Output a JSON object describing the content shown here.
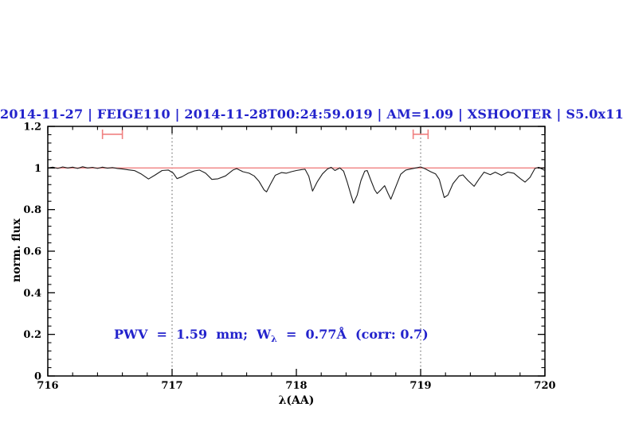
{
  "title": {
    "text": "2014-11-27 | FEIGE110 | 2014-11-28T00:24:59.019 | AM=1.09 | XSHOOTER | S5.0x11",
    "color": "#2323cc"
  },
  "annotation": {
    "part1": "PWV  =  1.59  mm;  W",
    "subscript": "λ",
    "part2": "  =  0.77Å  (corr: 0.7)",
    "color": "#2323cc"
  },
  "axes": {
    "x_label": "λ(AA)",
    "y_label": "norm. flux",
    "x_ticks": [
      "716",
      "717",
      "718",
      "719",
      "720"
    ],
    "y_ticks": [
      "0",
      "0.2",
      "0.4",
      "0.6",
      "0.8",
      "1",
      "1.2"
    ]
  },
  "colors": {
    "continuum_red": "#f08080",
    "marker_red": "#f08080",
    "spectrum_black": "#1b1b1b",
    "title_blue": "#2323cc"
  },
  "chart_data": {
    "type": "line",
    "title": "2014-11-27 | FEIGE110 | 2014-11-28T00:24:59.019 | AM=1.09 | XSHOOTER | S5.0x11",
    "xlabel": "λ(AA)",
    "ylabel": "norm. flux",
    "xlim": [
      716,
      720
    ],
    "ylim": [
      0,
      1.2
    ],
    "grid": false,
    "x_major_ticks": [
      716,
      717,
      718,
      719,
      720
    ],
    "x_minor_step": 0.2,
    "y_major_ticks": [
      0,
      0.2,
      0.4,
      0.6,
      0.8,
      1.0,
      1.2
    ],
    "y_minor_step": 0.04,
    "dotted_vlines_x": [
      717,
      719
    ],
    "continuum_line": {
      "y": 1.0,
      "color": "#f08080"
    },
    "window_markers": [
      {
        "x_min": 716.44,
        "x_max": 716.6,
        "y": 1.162,
        "cap_halfheight_flux": 0.023,
        "color": "#f08080"
      },
      {
        "x_min": 718.94,
        "x_max": 719.06,
        "y": 1.162,
        "cap_halfheight_flux": 0.023,
        "color": "#f08080"
      }
    ],
    "series": [
      {
        "name": "normalized spectrum",
        "color": "#1b1b1b",
        "points": [
          [
            716.0,
            1.0
          ],
          [
            716.04,
            1.004
          ],
          [
            716.08,
            0.998
          ],
          [
            716.12,
            1.005
          ],
          [
            716.16,
            1.0
          ],
          [
            716.2,
            1.004
          ],
          [
            716.24,
            0.998
          ],
          [
            716.28,
            1.006
          ],
          [
            716.32,
            1.0
          ],
          [
            716.36,
            1.003
          ],
          [
            716.4,
            0.998
          ],
          [
            716.44,
            1.004
          ],
          [
            716.48,
            0.999
          ],
          [
            716.52,
            1.002
          ],
          [
            716.56,
            0.998
          ],
          [
            716.6,
            0.995
          ],
          [
            716.65,
            0.991
          ],
          [
            716.7,
            0.987
          ],
          [
            716.75,
            0.972
          ],
          [
            716.81,
            0.947
          ],
          [
            716.86,
            0.965
          ],
          [
            716.92,
            0.988
          ],
          [
            716.97,
            0.99
          ],
          [
            717.01,
            0.975
          ],
          [
            717.04,
            0.949
          ],
          [
            717.08,
            0.958
          ],
          [
            717.13,
            0.975
          ],
          [
            717.18,
            0.986
          ],
          [
            717.22,
            0.99
          ],
          [
            717.27,
            0.975
          ],
          [
            717.32,
            0.945
          ],
          [
            717.37,
            0.948
          ],
          [
            717.43,
            0.962
          ],
          [
            717.49,
            0.99
          ],
          [
            717.52,
            0.997
          ],
          [
            717.57,
            0.982
          ],
          [
            717.62,
            0.975
          ],
          [
            717.66,
            0.962
          ],
          [
            717.7,
            0.935
          ],
          [
            717.74,
            0.895
          ],
          [
            717.76,
            0.885
          ],
          [
            717.79,
            0.92
          ],
          [
            717.83,
            0.965
          ],
          [
            717.88,
            0.978
          ],
          [
            717.92,
            0.975
          ],
          [
            717.96,
            0.982
          ],
          [
            718.0,
            0.988
          ],
          [
            718.04,
            0.992
          ],
          [
            718.07,
            0.994
          ],
          [
            718.1,
            0.96
          ],
          [
            718.13,
            0.889
          ],
          [
            718.17,
            0.935
          ],
          [
            718.21,
            0.972
          ],
          [
            718.25,
            0.995
          ],
          [
            718.28,
            1.003
          ],
          [
            718.31,
            0.988
          ],
          [
            718.35,
            1.0
          ],
          [
            718.38,
            0.985
          ],
          [
            718.41,
            0.93
          ],
          [
            718.44,
            0.87
          ],
          [
            718.46,
            0.831
          ],
          [
            718.49,
            0.87
          ],
          [
            718.52,
            0.94
          ],
          [
            718.55,
            0.985
          ],
          [
            718.57,
            0.988
          ],
          [
            718.6,
            0.94
          ],
          [
            718.63,
            0.895
          ],
          [
            718.65,
            0.877
          ],
          [
            718.68,
            0.895
          ],
          [
            718.71,
            0.915
          ],
          [
            718.74,
            0.875
          ],
          [
            718.76,
            0.85
          ],
          [
            718.8,
            0.91
          ],
          [
            718.84,
            0.97
          ],
          [
            718.88,
            0.99
          ],
          [
            718.92,
            0.995
          ],
          [
            718.96,
            1.0
          ],
          [
            719.0,
            1.005
          ],
          [
            719.04,
            0.995
          ],
          [
            719.08,
            0.982
          ],
          [
            719.12,
            0.972
          ],
          [
            719.15,
            0.945
          ],
          [
            719.19,
            0.858
          ],
          [
            719.22,
            0.87
          ],
          [
            719.26,
            0.925
          ],
          [
            719.31,
            0.962
          ],
          [
            719.34,
            0.967
          ],
          [
            719.38,
            0.94
          ],
          [
            719.43,
            0.912
          ],
          [
            719.47,
            0.947
          ],
          [
            719.51,
            0.98
          ],
          [
            719.56,
            0.968
          ],
          [
            719.6,
            0.98
          ],
          [
            719.65,
            0.965
          ],
          [
            719.7,
            0.98
          ],
          [
            719.75,
            0.975
          ],
          [
            719.8,
            0.95
          ],
          [
            719.84,
            0.932
          ],
          [
            719.88,
            0.955
          ],
          [
            719.92,
            0.998
          ],
          [
            719.95,
            1.003
          ],
          [
            720.0,
            0.988
          ]
        ]
      }
    ]
  }
}
